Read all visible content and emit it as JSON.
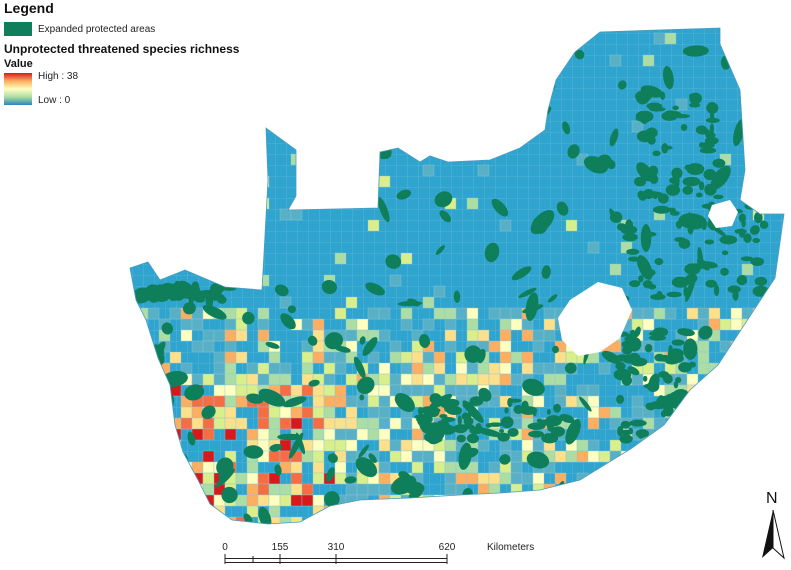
{
  "legend": {
    "title": "Legend",
    "protected_label": "Expanded protected areas",
    "layer_title": "Unprotected threatened species richness",
    "field_title": "Value",
    "high_label": "High : 38",
    "low_label": "Low : 0"
  },
  "colors": {
    "protected": "#0f7f5b",
    "high": "#d7191c",
    "low": "#2b83ba",
    "grid_blue": "#2fa4cf",
    "grid_line": "#5fb7d9"
  },
  "scale_bar": {
    "ticks": [
      "0",
      "155",
      "310",
      "620"
    ],
    "unit": "Kilometers"
  },
  "north_arrow": {
    "label": "N"
  }
}
